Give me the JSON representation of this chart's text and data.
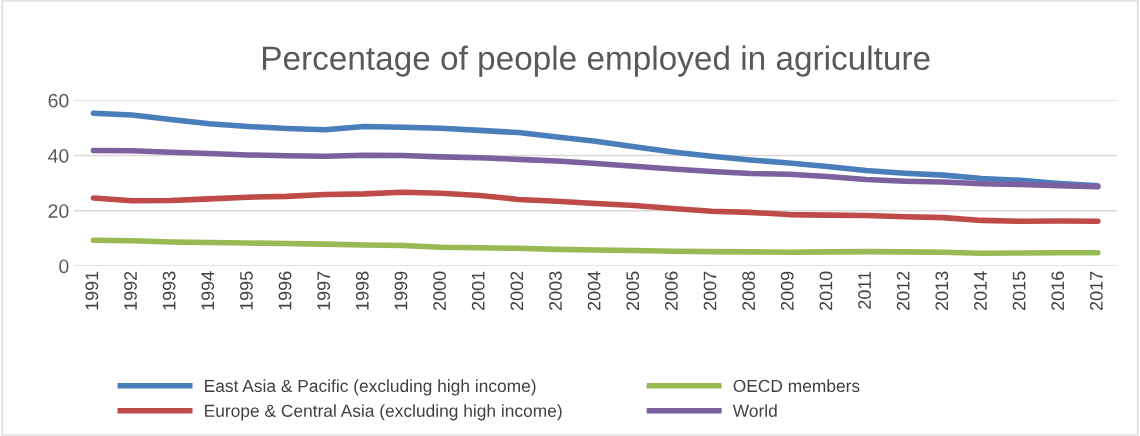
{
  "chart_data": {
    "type": "line",
    "title": "Percentage of people employed in agriculture",
    "categories": [
      "1991",
      "1992",
      "1993",
      "1994",
      "1995",
      "1996",
      "1997",
      "1998",
      "1999",
      "2000",
      "2001",
      "2002",
      "2003",
      "2004",
      "2005",
      "2006",
      "2007",
      "2008",
      "2009",
      "2010",
      "2011",
      "2012",
      "2013",
      "2014",
      "2015",
      "2016",
      "2017"
    ],
    "series": [
      {
        "name": "East Asia & Pacific (excluding high income)",
        "color": "#4a7ebb",
        "values": [
          55.3,
          54.7,
          53,
          51.5,
          50.5,
          49.8,
          49.3,
          50.5,
          50.2,
          49.9,
          49.1,
          48.3,
          46.7,
          45.2,
          43.2,
          41.3,
          39.7,
          38.4,
          37.3,
          36,
          34.6,
          33.6,
          32.9,
          31.7,
          31,
          29.9,
          29
        ]
      },
      {
        "name": "Europe & Central Asia (excluding high income)",
        "color": "#be4b48",
        "values": [
          24.6,
          23.6,
          23.7,
          24.3,
          24.9,
          25.2,
          25.9,
          26.1,
          26.7,
          26.3,
          25.5,
          24.1,
          23.4,
          22.6,
          21.9,
          20.8,
          19.8,
          19.4,
          18.6,
          18.4,
          18.3,
          17.8,
          17.5,
          16.5,
          16.2,
          16.3,
          16.2
        ]
      },
      {
        "name": "OECD members",
        "color": "#98b954",
        "values": [
          9.3,
          9.1,
          8.7,
          8.5,
          8.3,
          8.1,
          7.9,
          7.6,
          7.4,
          6.8,
          6.6,
          6.4,
          6.0,
          5.8,
          5.6,
          5.3,
          5.2,
          5.1,
          5.0,
          5.1,
          5.2,
          5.1,
          5.0,
          4.6,
          4.7,
          4.8,
          4.8
        ]
      },
      {
        "name": "World",
        "color": "#7d60a0",
        "values": [
          41.8,
          41.7,
          41.2,
          40.7,
          40.2,
          39.9,
          39.7,
          40.1,
          40,
          39.5,
          39.2,
          38.6,
          38,
          37.1,
          36.1,
          35.1,
          34.2,
          33.5,
          33.2,
          32.4,
          31.3,
          30.7,
          30.4,
          29.8,
          29.5,
          29.1,
          28.7
        ]
      }
    ],
    "ylim": [
      0,
      60
    ],
    "yticks": [
      0,
      20,
      40,
      60
    ],
    "grid": "y",
    "legend": "bottom",
    "marker": "none",
    "line_style": "solid"
  }
}
